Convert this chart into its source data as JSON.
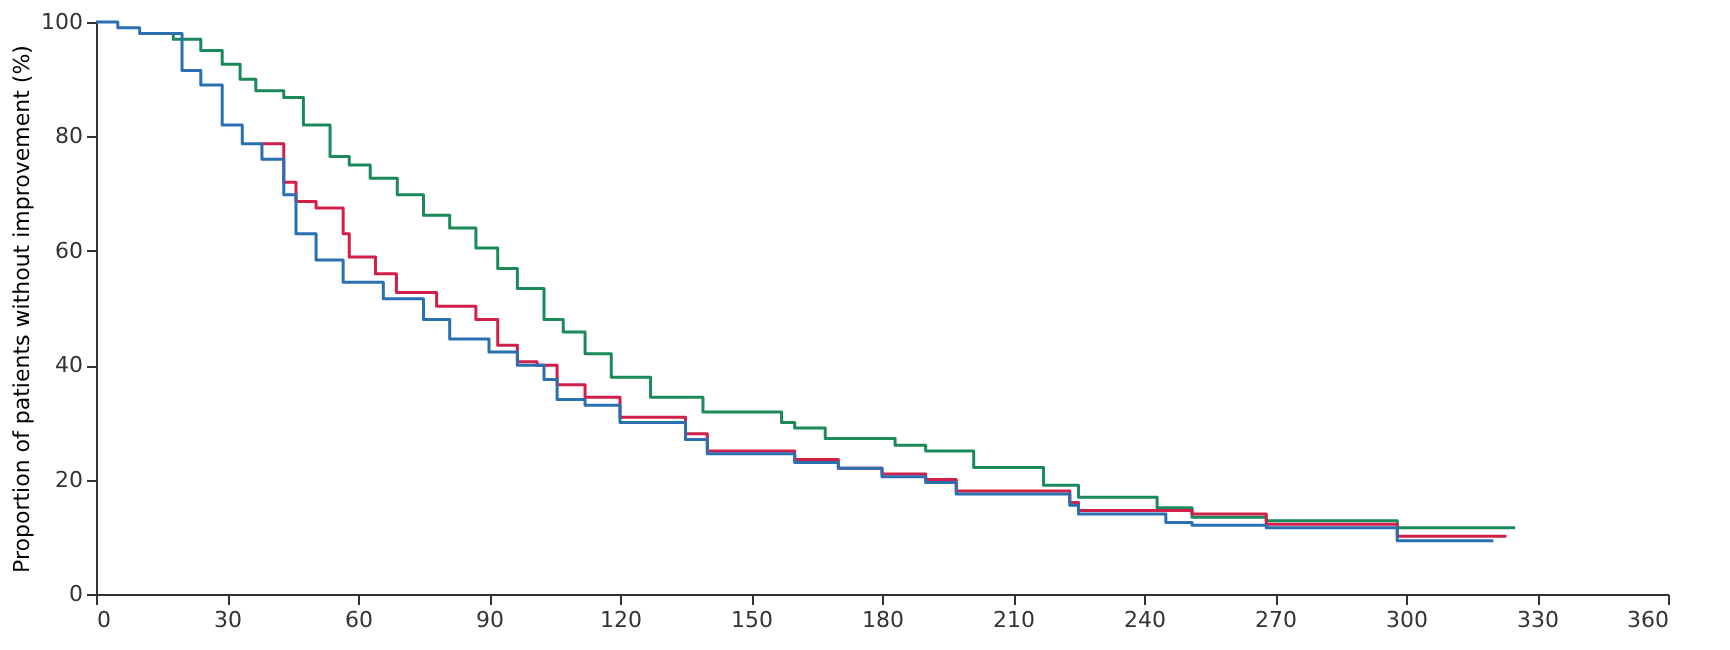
{
  "chart_data": {
    "type": "step",
    "ylabel": "Proportion of patients without improvement (%)",
    "xlim": [
      0,
      360
    ],
    "xticks": [
      0,
      30,
      60,
      90,
      120,
      150,
      180,
      210,
      240,
      270,
      300,
      330,
      360
    ],
    "ylim": [
      0,
      100
    ],
    "yticks": [
      0,
      20,
      40,
      60,
      80,
      100
    ],
    "grid": false,
    "marker": "none",
    "line_style": "solid",
    "series": [
      {
        "color": "#1a8a5a",
        "x": [
          10,
          17.7,
          24,
          28.9,
          33,
          36.6,
          43,
          47.5,
          53.6,
          58,
          62.8,
          69,
          75,
          81,
          87,
          92,
          96.5,
          102.6,
          107,
          112,
          118,
          127,
          139,
          157,
          160,
          167,
          183,
          190,
          201,
          217,
          225,
          243,
          251,
          268,
          298,
          325
        ],
        "values": [
          98,
          97,
          95,
          92.6,
          90,
          88,
          86.8,
          82,
          76.5,
          75,
          72.7,
          69.8,
          66.2,
          64,
          60.5,
          56.9,
          53.4,
          48,
          45.8,
          42,
          37.9,
          34.4,
          31.8,
          30,
          29,
          27.2,
          26,
          25,
          22.1,
          19,
          16.9,
          15.1,
          13.4,
          12.8,
          11.6,
          11.6
        ]
      },
      {
        "color": "#d0204a",
        "x": [
          38,
          43,
          45.8,
          50.4,
          56.6,
          58,
          64,
          68.8,
          78,
          87,
          92,
          96.5,
          101,
          105.6,
          112,
          120,
          135,
          140,
          160,
          170,
          180,
          190,
          197,
          223,
          225,
          251,
          268,
          298,
          323
        ],
        "values": [
          78.7,
          72,
          68.6,
          67.5,
          63,
          58.9,
          56,
          52.7,
          50.3,
          48,
          43.5,
          40.6,
          40,
          36.6,
          34.4,
          30.9,
          28,
          25,
          23.5,
          22,
          21,
          20,
          18,
          16,
          14.6,
          14,
          12.2,
          10.1,
          10.1
        ]
      },
      {
        "color": "#2a6fb0",
        "x": [
          0,
          5,
          10,
          16,
          19.7,
          24,
          28.9,
          33.5,
          38,
          43,
          45.8,
          50.4,
          56.6,
          65.8,
          75,
          81,
          90,
          96.5,
          102.6,
          105.6,
          112,
          120,
          135,
          140,
          160,
          170,
          180,
          190,
          197,
          223,
          225,
          245,
          251,
          268,
          298,
          320
        ],
        "values": [
          100,
          99,
          98,
          98,
          91.5,
          89,
          82,
          78.7,
          76,
          69.8,
          63,
          58.4,
          54.5,
          51.6,
          48,
          44.6,
          42.3,
          40,
          37.5,
          34,
          33,
          30,
          27,
          24.5,
          23,
          22,
          20.5,
          19.5,
          17.5,
          15.5,
          14,
          12.5,
          12,
          11.6,
          9.3,
          9.3
        ]
      }
    ]
  }
}
